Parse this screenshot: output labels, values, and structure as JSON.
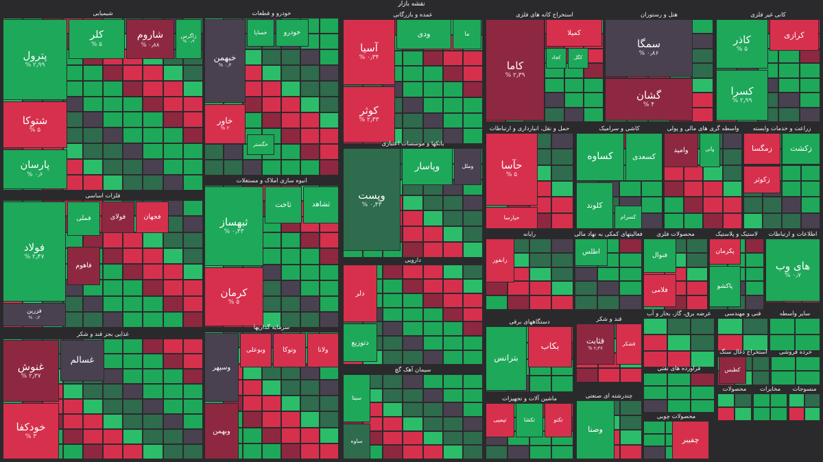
{
  "header": {
    "title": "نقشه بازار"
  },
  "sectors": [
    {
      "title": "شیمیایی",
      "tiles": [
        {
          "name": "پترول",
          "change": "۲٫۹۹ %"
        },
        {
          "name": "شتوکا",
          "change": "۵ %"
        },
        {
          "name": "پارسان",
          "change": "۰٫۶ %"
        },
        {
          "name": "کلر",
          "change": "۵ %"
        },
        {
          "name": "شاروم",
          "change": "۰٫۸۸ %"
        },
        {
          "name": "زاگرس",
          "change": "۰٫۹ %"
        }
      ]
    },
    {
      "title": "خودرو و قطعات",
      "tiles": [
        {
          "name": "خبهمن",
          "change": "۰٫۴ %"
        },
        {
          "name": "خاور",
          "change": "۲ %"
        },
        {
          "name": "خساپا"
        },
        {
          "name": "خودرو"
        },
        {
          "name": "خگستر"
        }
      ]
    },
    {
      "title": "فلزات اساسی",
      "tiles": [
        {
          "name": "فولاد",
          "change": "۲٫۴۷ %"
        },
        {
          "name": "فزرین",
          "change": "۰٫۲ %"
        },
        {
          "name": "فملی"
        },
        {
          "name": "فولای"
        },
        {
          "name": "فجهان"
        },
        {
          "name": "فاهوم"
        }
      ]
    },
    {
      "title": "غذایی بجز قند و شکر",
      "tiles": [
        {
          "name": "غنوش",
          "change": "۲٫۳۷ %"
        },
        {
          "name": "خودکفا",
          "change": "۳ %"
        },
        {
          "name": "غسالم"
        }
      ]
    },
    {
      "title": "انبوه سازی املاک و مستغلات",
      "tiles": [
        {
          "name": "ثبهساز",
          "change": "۰٫۴۳ %"
        },
        {
          "name": "کرمان",
          "change": "۵ %"
        },
        {
          "name": "ثاخت"
        },
        {
          "name": "ثشاهد"
        }
      ]
    },
    {
      "title": "سرمایه گذاریها",
      "tiles": [
        {
          "name": "وسپهر"
        },
        {
          "name": "وبهمن"
        },
        {
          "name": "وبوعلی"
        },
        {
          "name": "وتوکا"
        },
        {
          "name": "ولانا"
        }
      ]
    },
    {
      "title": "عمده و بازرگانی",
      "tiles": [
        {
          "name": "آسیا",
          "change": "۰٫۳۴ %"
        },
        {
          "name": "کوثر",
          "change": "۲٫۳۳ %"
        },
        {
          "name": "ودی"
        },
        {
          "name": "ما"
        }
      ]
    },
    {
      "title": "بانکها و موسسات اعتباری",
      "tiles": [
        {
          "name": "وپست",
          "change": "۰٫۴۳ %"
        },
        {
          "name": "وپاسار"
        },
        {
          "name": "وملل"
        }
      ]
    },
    {
      "title": "دارویی",
      "tiles": [
        {
          "name": "دلر"
        },
        {
          "name": "دتوزیع"
        }
      ]
    },
    {
      "title": "سیمان آهک گچ",
      "tiles": [
        {
          "name": "سیتا"
        },
        {
          "name": "ساوه"
        }
      ]
    },
    {
      "title": "استخراج کانه های فلزی",
      "tiles": [
        {
          "name": "کاما",
          "change": "۲٫۳۹ %"
        },
        {
          "name": "کمیلا"
        },
        {
          "name": "کچاد"
        },
        {
          "name": "کگل"
        }
      ]
    },
    {
      "title": "هتل و رستوران",
      "tiles": [
        {
          "name": "سمگا",
          "change": "۰٫۸۶ %"
        },
        {
          "name": "گشان",
          "change": "۴ %"
        }
      ]
    },
    {
      "title": "کانی غیر فلزی",
      "tiles": [
        {
          "name": "کاذر",
          "change": "۵ %"
        },
        {
          "name": "کسرا",
          "change": "۲٫۹۹ %"
        },
        {
          "name": "کرازی"
        }
      ]
    },
    {
      "title": "حمل و نقل، انبارداری و ارتباطات",
      "tiles": [
        {
          "name": "حآسا",
          "change": "۵ %"
        },
        {
          "name": "حپارسا"
        }
      ]
    },
    {
      "title": "کاشی و سرامیک",
      "tiles": [
        {
          "name": "کساوه"
        },
        {
          "name": "کسعدی"
        },
        {
          "name": "کلوند"
        },
        {
          "name": "کسرام"
        }
      ]
    },
    {
      "title": "واسطه گری های مالی و پولی",
      "tiles": [
        {
          "name": "وامید"
        },
        {
          "name": "وآتی"
        }
      ]
    },
    {
      "title": "زراعت و خدمات وابسته",
      "tiles": [
        {
          "name": "زمگسا"
        },
        {
          "name": "زکشت"
        },
        {
          "name": "زکوثر"
        }
      ]
    },
    {
      "title": "رایانه",
      "tiles": [
        {
          "name": "رانفور"
        }
      ]
    },
    {
      "title": "فعالیتهای کمکی به نهاد مالی",
      "tiles": [
        {
          "name": "اطلس"
        }
      ]
    },
    {
      "title": "محصولات فلزی",
      "tiles": [
        {
          "name": "فنوال"
        },
        {
          "name": "فلامی"
        }
      ]
    },
    {
      "title": "لاستیک و پلاستیک",
      "tiles": [
        {
          "name": "پکرمان"
        },
        {
          "name": "پاکشو"
        }
      ]
    },
    {
      "title": "اطلاعات و ارتباطات",
      "tiles": [
        {
          "name": "های وب",
          "change": "۰٫۷ %"
        }
      ]
    },
    {
      "title": "دستگاههای برقی",
      "tiles": [
        {
          "name": "بترانس"
        },
        {
          "name": "بکاب"
        }
      ]
    },
    {
      "title": "قند و شکر",
      "tiles": [
        {
          "name": "قثابت",
          "change": "۲٫۳۷ %"
        },
        {
          "name": "قشکر"
        }
      ]
    },
    {
      "title": "ماشین آلات و تجهیزات",
      "tiles": [
        {
          "name": "تپمپی"
        },
        {
          "name": "تکشا"
        },
        {
          "name": "تکنو"
        }
      ]
    },
    {
      "title": "چندرشته ای صنعتی",
      "tiles": [
        {
          "name": "وصنا"
        }
      ]
    },
    {
      "title": "محصولات چوبی",
      "tiles": [
        {
          "name": "چفیبر"
        }
      ]
    },
    {
      "title": "عرضه برق، گاز، بخار و آب",
      "tiles": []
    },
    {
      "title": "فراورده های نفتی",
      "tiles": []
    },
    {
      "title": "فنی و مهندسی",
      "tiles": []
    },
    {
      "title": "سایر واسطه",
      "tiles": []
    },
    {
      "title": "استخراج ذغال سنگ",
      "tiles": [
        {
          "name": "کطبس"
        }
      ]
    },
    {
      "title": "خرده فروشی",
      "tiles": []
    },
    {
      "title": "محصولات",
      "tiles": []
    },
    {
      "title": "مخابرات",
      "tiles": []
    },
    {
      "title": "منسوجات",
      "tiles": []
    }
  ]
}
